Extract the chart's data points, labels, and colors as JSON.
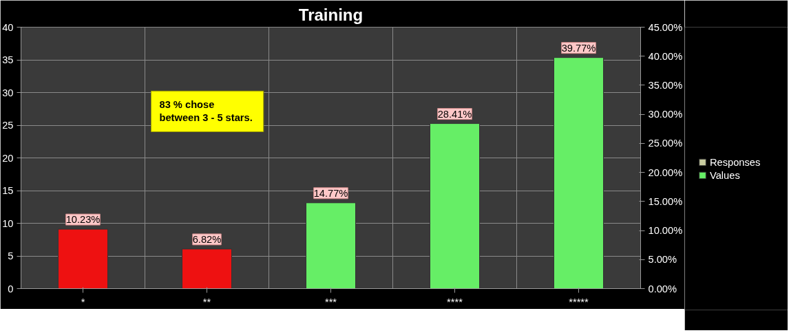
{
  "chart_data": {
    "type": "bar",
    "title": "Training",
    "categories": [
      "*",
      "**",
      "***",
      "****",
      "*****"
    ],
    "series": [
      {
        "name": "Responses",
        "color": "#c8cca0",
        "values": [
          null,
          null,
          null,
          null,
          null
        ]
      },
      {
        "name": "Values",
        "color": "#66ee66",
        "colors": [
          "#ee1111",
          "#ee1111",
          "#66ee66",
          "#66ee66",
          "#66ee66"
        ],
        "axis": "y2",
        "values": [
          10.23,
          6.82,
          14.77,
          28.41,
          39.77
        ],
        "value_labels": [
          "10.23%",
          "6.82%",
          "14.77%",
          "28.41%",
          "39.77%"
        ]
      }
    ],
    "ylim": [
      0,
      40
    ],
    "yticks": [
      0,
      5,
      10,
      15,
      20,
      25,
      30,
      35,
      40
    ],
    "y2lim": [
      0,
      45
    ],
    "y2ticks": [
      {
        "value": 0,
        "label": "0.00%"
      },
      {
        "value": 5,
        "label": "5.00%"
      },
      {
        "value": 10,
        "label": "10.00%"
      },
      {
        "value": 15,
        "label": "15.00%"
      },
      {
        "value": 20,
        "label": "20.00%"
      },
      {
        "value": 25,
        "label": "25.00%"
      },
      {
        "value": 30,
        "label": "30.00%"
      },
      {
        "value": 35,
        "label": "35.00%"
      },
      {
        "value": 40,
        "label": "40.00%"
      },
      {
        "value": 45,
        "label": "45.00%"
      }
    ],
    "annotations": [
      "83 % chose\nbetween  3 - 5 stars."
    ],
    "grid": true,
    "legend": "right"
  }
}
